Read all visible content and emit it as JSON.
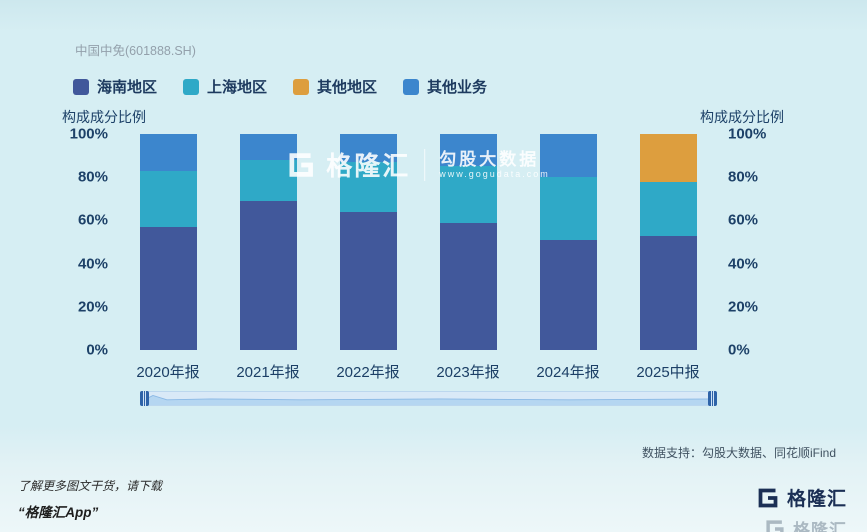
{
  "header": {
    "stock_label": "中国中免(601888.SH)"
  },
  "legend": [
    {
      "label": "海南地区",
      "color": "#41589b"
    },
    {
      "label": "上海地区",
      "color": "#2fa9c7"
    },
    {
      "label": "其他地区",
      "color": "#dd9e3e"
    },
    {
      "label": "其他业务",
      "color": "#3c86cd"
    }
  ],
  "axis": {
    "left_title": "构成成分比例",
    "right_title": "构成成分比例"
  },
  "chart_data": {
    "type": "bar",
    "stacked": true,
    "title": "中国中免(601888.SH) 构成成分比例",
    "categories": [
      "2020年报",
      "2021年报",
      "2022年报",
      "2023年报",
      "2024年报",
      "2025中报"
    ],
    "series": [
      {
        "name": "海南地区",
        "color": "#41589b",
        "values": [
          57,
          69,
          64,
          59,
          51,
          53
        ]
      },
      {
        "name": "上海地区",
        "color": "#2fa9c7",
        "values": [
          26,
          19,
          23,
          26,
          29,
          25
        ]
      },
      {
        "name": "其他地区",
        "color": "#dd9e3e",
        "values": [
          0,
          0,
          0,
          0,
          0,
          22
        ]
      },
      {
        "name": "其他业务",
        "color": "#3c86cd",
        "values": [
          17,
          12,
          13,
          15,
          20,
          0
        ]
      }
    ],
    "ylim": [
      0,
      100
    ],
    "y_tick_labels": [
      "100%",
      "80%",
      "60%",
      "40%",
      "20%",
      "0%"
    ],
    "grid": false,
    "legend_position": "top"
  },
  "watermark": {
    "brand": "格隆汇",
    "name": "勾股大数据",
    "url": "www.gogudata.com"
  },
  "footer": {
    "data_support": "数据支持：勾股大数据、同花顺iFind",
    "promo_line1": "了解更多图文干货，请下载",
    "promo_line2": "“格隆汇App”",
    "brand_name": "格隆汇",
    "brand_name_faded": "格隆汇"
  },
  "colors": {
    "background": "#d6eef3",
    "text_dark": "#1d3a5f",
    "text_gray": "#93a0ab",
    "scroll_track": "#d9e9f7",
    "scroll_handle": "#2e63a8"
  }
}
